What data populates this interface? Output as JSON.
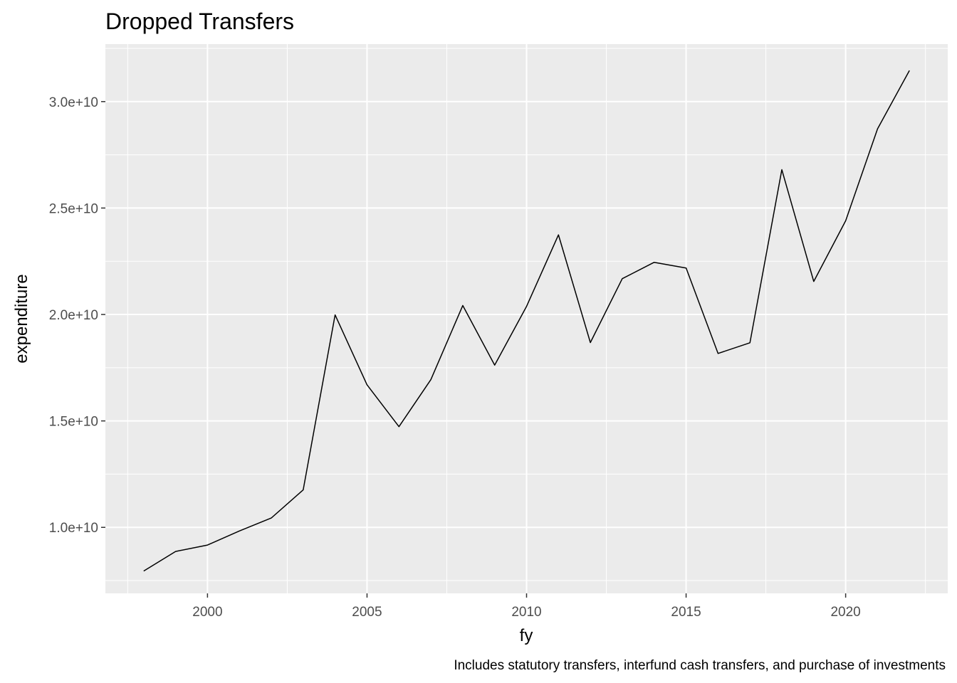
{
  "chart_data": {
    "type": "line",
    "title": "Dropped Transfers",
    "xlabel": "fy",
    "ylabel": "expenditure",
    "caption": "Includes statutory transfers, interfund cash transfers, and purchase of investments",
    "x_ticks": [
      2000,
      2005,
      2010,
      2015,
      2020
    ],
    "x_tick_labels": [
      "2000",
      "2005",
      "2010",
      "2015",
      "2020"
    ],
    "y_ticks": [
      10000000000,
      15000000000,
      20000000000,
      25000000000,
      30000000000
    ],
    "y_tick_labels": [
      "1.0e+10",
      "1.5e+10",
      "2.0e+10",
      "2.5e+10",
      "3.0e+10"
    ],
    "xlim": [
      1996.8,
      2023.2
    ],
    "ylim": [
      6900000000,
      32700000000
    ],
    "grid": true,
    "panel_background": "#EBEBEB",
    "grid_color": "#FFFFFF",
    "line_color": "#000000",
    "series": [
      {
        "x": [
          1998,
          1999,
          2000,
          2001,
          2002,
          2003,
          2004,
          2005,
          2006,
          2007,
          2008,
          2009,
          2010,
          2011,
          2012,
          2013,
          2014,
          2015,
          2016,
          2017,
          2018,
          2019,
          2020,
          2021,
          2022
        ],
        "values": [
          7950000000,
          8870000000,
          9170000000,
          9830000000,
          10440000000,
          11760000000,
          19980000000,
          16700000000,
          14730000000,
          16940000000,
          20420000000,
          17620000000,
          20380000000,
          23740000000,
          18680000000,
          21680000000,
          22450000000,
          22180000000,
          18170000000,
          18670000000,
          26800000000,
          21550000000,
          24400000000,
          28720000000,
          31460000000
        ]
      }
    ]
  }
}
